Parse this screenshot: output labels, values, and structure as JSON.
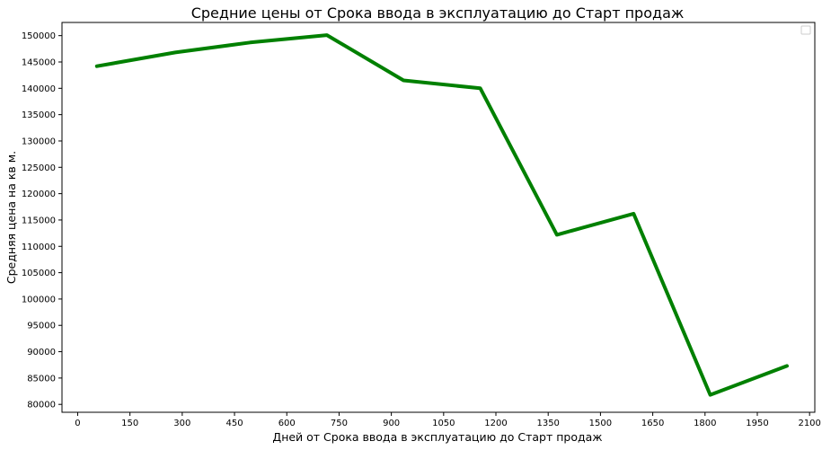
{
  "chart_data": {
    "type": "line",
    "title": "Средние цены от Срока ввода в эксплуатацию до Старт продаж",
    "xlabel": "Дней от Срока ввода в эксплуатацию до Старт продаж",
    "ylabel": "Средняя цена на кв м.",
    "xlim": [
      -45,
      2115
    ],
    "ylim": [
      78500,
      152500
    ],
    "xticks": [
      0,
      150,
      300,
      450,
      600,
      750,
      900,
      1050,
      1200,
      1350,
      1500,
      1650,
      1800,
      1950,
      2100
    ],
    "yticks": [
      80000,
      85000,
      90000,
      95000,
      100000,
      105000,
      110000,
      115000,
      120000,
      125000,
      130000,
      135000,
      140000,
      145000,
      150000
    ],
    "grid": false,
    "legend": "top-right",
    "line_color": "#008000",
    "series": [
      {
        "x": [
          55,
          280,
          495,
          715,
          935,
          1155,
          1375,
          1595,
          1815,
          2035
        ],
        "y": [
          144200,
          146800,
          148700,
          150100,
          141500,
          140000,
          112200,
          116200,
          81800,
          87300
        ]
      }
    ]
  }
}
